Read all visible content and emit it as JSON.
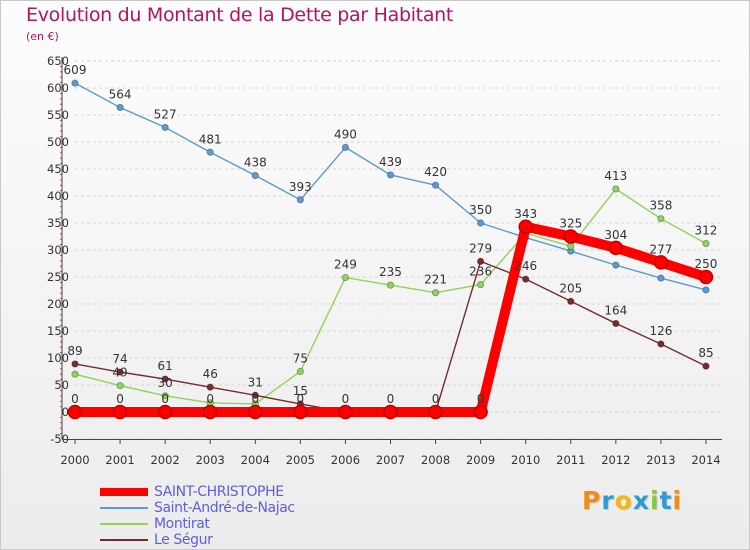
{
  "chart_data": {
    "type": "line",
    "title": "Evolution du Montant de la Dette par Habitant",
    "subtitle": "(en €)",
    "xlabel": "",
    "ylabel": "",
    "ylim": [
      -50,
      650
    ],
    "yticks": [
      -50,
      0,
      50,
      100,
      150,
      200,
      250,
      300,
      350,
      400,
      450,
      500,
      550,
      600,
      650
    ],
    "categories": [
      "2000",
      "2001",
      "2002",
      "2003",
      "2004",
      "2005",
      "2006",
      "2007",
      "2008",
      "2009",
      "2010",
      "2011",
      "2012",
      "2013",
      "2014"
    ],
    "grid": "horizontal dashed",
    "legend_placement": "bottom-left",
    "series": [
      {
        "name": "Saint-André-de-Najac",
        "color": "#5b9bd0",
        "values": [
          609,
          564,
          527,
          481,
          438,
          393,
          490,
          439,
          420,
          350,
          323,
          298,
          272,
          248,
          226
        ],
        "labels": [
          "609",
          "564",
          "527",
          "481",
          "438",
          "393",
          "490",
          "439",
          "420",
          "350",
          "",
          "",
          "",
          "",
          ""
        ]
      },
      {
        "name": "Montirat",
        "color": "#8ed45a",
        "values": [
          70,
          49,
          30,
          17,
          15,
          75,
          249,
          235,
          221,
          236,
          331,
          307,
          413,
          358,
          312
        ],
        "labels": [
          "",
          "49",
          "30",
          "",
          "",
          "75",
          "249",
          "235",
          "221",
          "236",
          "",
          "",
          "413",
          "358",
          "312"
        ]
      },
      {
        "name": "Le Ségur",
        "color": "#7a2a2a",
        "values": [
          89,
          74,
          61,
          46,
          31,
          15,
          0,
          0,
          0,
          279,
          246,
          205,
          164,
          126,
          85
        ],
        "labels": [
          "89",
          "74",
          "61",
          "46",
          "31",
          "15",
          "",
          "",
          "",
          "279",
          "246",
          "205",
          "164",
          "126",
          "85"
        ]
      },
      {
        "name": "SAINT-CHRISTOPHE",
        "color": "#ff0000",
        "values": [
          0,
          0,
          0,
          0,
          0,
          0,
          0,
          0,
          0,
          0,
          343,
          325,
          304,
          277,
          250
        ],
        "labels": [
          "0",
          "0",
          "0",
          "0",
          "0",
          "0",
          "0",
          "0",
          "0",
          "0",
          "343",
          "325",
          "304",
          "277",
          "250"
        ]
      }
    ],
    "legend_order": [
      "SAINT-CHRISTOPHE",
      "Saint-André-de-Najac",
      "Montirat",
      "Le Ségur"
    ]
  },
  "legend": {
    "items": [
      {
        "label": "SAINT-CHRISTOPHE",
        "color": "#ff0000"
      },
      {
        "label": "Saint-André-de-Najac",
        "color": "#5b9bd0"
      },
      {
        "label": "Montirat",
        "color": "#8ed45a"
      },
      {
        "label": "Le Ségur",
        "color": "#7a2a2a"
      }
    ]
  },
  "logo": {
    "letters": [
      "P",
      "r",
      "o",
      "x",
      "i",
      "t",
      "i"
    ],
    "colors": [
      "#f28b1a",
      "#2f9bd6",
      "#f2b51a",
      "#2f9bd6",
      "#8cc63f",
      "#2f9bd6",
      "#f28b1a"
    ]
  }
}
